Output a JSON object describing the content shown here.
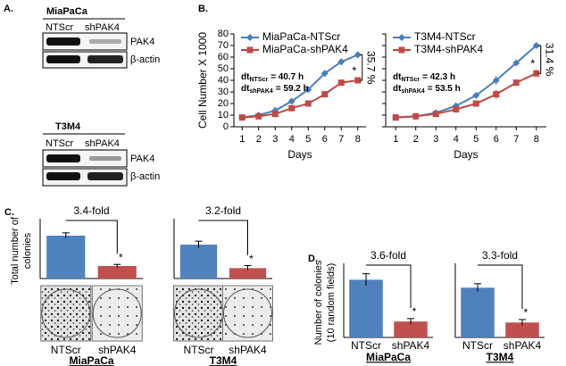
{
  "panel_labels": [
    "A.",
    "B.",
    "C.",
    "D."
  ],
  "blots": [
    {
      "title": "MiaPaCa",
      "lanes": [
        "NTScr",
        "shPAK4"
      ],
      "bands": [
        "PAK4",
        "β-actin"
      ]
    },
    {
      "title": "T3M4",
      "lanes": [
        "NTScr",
        "shPAK4"
      ],
      "bands": [
        "PAK4",
        "β-actin"
      ]
    }
  ],
  "chart_data": [
    {
      "type": "line",
      "xlabel": "Days",
      "ylabel": "Cell Number  X 1000",
      "x": [
        1,
        2,
        3,
        4,
        5,
        6,
        7,
        8
      ],
      "xlim": [
        0.5,
        8.5
      ],
      "xticks": [
        1,
        2,
        3,
        4,
        5,
        6,
        7,
        8
      ],
      "ylim": [
        0,
        80
      ],
      "yticks": [
        0,
        10,
        20,
        30,
        40,
        50,
        60,
        70,
        80
      ],
      "legend": "upper left",
      "series": [
        {
          "name": "MiaPaCa-NTScr",
          "color": "#4a7ebb",
          "marker": "diamond",
          "values": [
            8,
            10,
            14,
            22,
            32,
            46,
            56,
            62
          ],
          "errors": [
            0.5,
            0.5,
            0.8,
            1,
            1.5,
            2,
            3,
            2.5
          ]
        },
        {
          "name": "MiaPaCa-shPAK4",
          "color": "#be4b48",
          "marker": "square",
          "values": [
            8,
            9,
            11,
            16,
            20,
            28,
            38,
            40
          ],
          "errors": [
            0.5,
            0.5,
            0.5,
            0.8,
            1,
            1.5,
            2,
            2.5
          ]
        }
      ],
      "doubling_times": [
        {
          "text": "dt",
          "sub": "NTScr",
          "rest": "= 40.7 h"
        },
        {
          "text": "dt",
          "sub": "shPAK4",
          "rest": "= 59.2 h"
        }
      ],
      "reduction": "35.7 %",
      "significance": "*"
    },
    {
      "type": "line",
      "xlabel": "Days",
      "x": [
        1,
        2,
        3,
        4,
        5,
        6,
        7,
        8
      ],
      "xlim": [
        0.5,
        8.5
      ],
      "xticks": [
        1,
        2,
        3,
        4,
        5,
        6,
        7,
        8
      ],
      "ylim": [
        0,
        80
      ],
      "yticks": [
        0,
        10,
        20,
        30,
        40,
        50,
        60,
        70,
        80
      ],
      "ytick_labels": false,
      "legend": "upper left",
      "series": [
        {
          "name": "T3M4-NTScr",
          "color": "#4a7ebb",
          "marker": "diamond",
          "values": [
            8,
            9,
            12,
            18,
            27,
            40,
            55,
            70
          ],
          "errors": [
            0.5,
            0.5,
            0.8,
            1,
            1.5,
            4,
            2,
            2
          ]
        },
        {
          "name": "T3M4-shPAK4",
          "color": "#be4b48",
          "marker": "square",
          "values": [
            8,
            9,
            11,
            15,
            20,
            28,
            38,
            46
          ],
          "errors": [
            0.5,
            0.5,
            0.5,
            1,
            2.5,
            4,
            2.5,
            3
          ]
        }
      ],
      "doubling_times": [
        {
          "text": "dt",
          "sub": "NTScr",
          "rest": "= 42.3 h"
        },
        {
          "text": "dt",
          "sub": "shPAK4",
          "rest": "= 53.5 h"
        }
      ],
      "reduction": "31.4 %",
      "significance": "*"
    },
    {
      "type": "bar",
      "ylabel": [
        "Total number of",
        "colonies"
      ],
      "categories": [
        "NTScr",
        "shPAK4"
      ],
      "values": [
        310,
        90
      ],
      "errors": [
        20,
        12
      ],
      "colors": [
        "#4f81bd",
        "#c0504d"
      ],
      "ylim": [
        0,
        400
      ],
      "fold": "3.4-fold",
      "significance": "*",
      "group": "MiaPaCa"
    },
    {
      "type": "bar",
      "categories": [
        "NTScr",
        "shPAK4"
      ],
      "values": [
        245,
        75
      ],
      "errors": [
        25,
        18
      ],
      "colors": [
        "#4f81bd",
        "#c0504d"
      ],
      "ylim": [
        0,
        400
      ],
      "fold": "3.2-fold",
      "significance": "*",
      "group": "T3M4"
    },
    {
      "type": "bar",
      "ylabel": [
        "Number of colonies",
        "(10 random fields)"
      ],
      "categories": [
        "NTScr",
        "shPAK4"
      ],
      "values": [
        58,
        16
      ],
      "errors": [
        6,
        3
      ],
      "colors": [
        "#4f81bd",
        "#c0504d"
      ],
      "ylim": [
        0,
        70
      ],
      "fold": "3.6-fold",
      "significance": "*",
      "group": "MiaPaCa"
    },
    {
      "type": "bar",
      "categories": [
        "NTScr",
        "shPAK4"
      ],
      "values": [
        50,
        15
      ],
      "errors": [
        4,
        3
      ],
      "colors": [
        "#4f81bd",
        "#c0504d"
      ],
      "ylim": [
        0,
        70
      ],
      "fold": "3.3-fold",
      "significance": "*",
      "group": "T3M4"
    }
  ]
}
